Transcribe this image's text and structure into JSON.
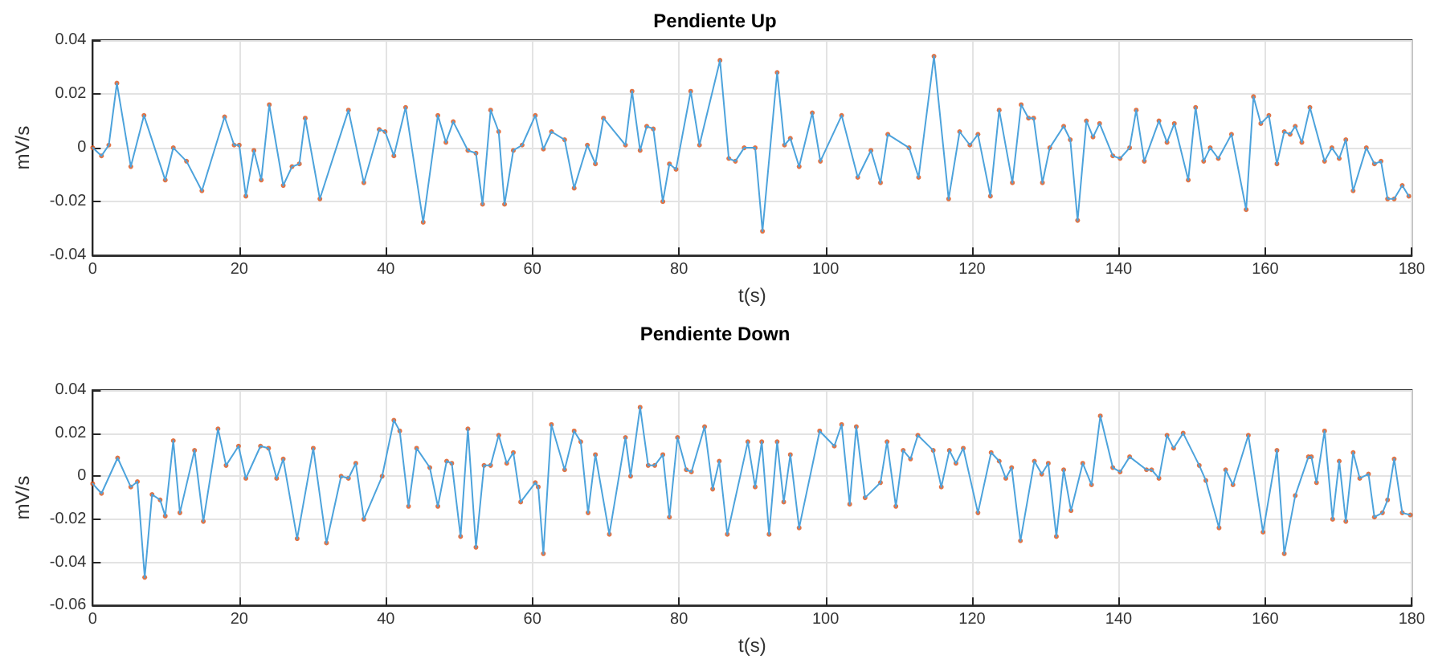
{
  "chart_data": [
    {
      "type": "line",
      "title": "Pendiente Up",
      "xlabel": "t(s)",
      "ylabel": "mV/s",
      "xlim": [
        0,
        180
      ],
      "xticks": [
        0,
        20,
        40,
        60,
        80,
        100,
        120,
        140,
        160,
        180
      ],
      "ylim": [
        -0.04,
        0.04
      ],
      "yticks": [
        -0.04,
        -0.02,
        0,
        0.02,
        0.04
      ],
      "grid": true,
      "x": [
        0,
        1.2,
        2.2,
        3.3,
        5.2,
        7.0,
        9.9,
        11.0,
        12.8,
        14.9,
        18.0,
        19.3,
        20.0,
        20.9,
        22.0,
        23.0,
        24.1,
        26.0,
        27.2,
        28.2,
        29.0,
        31.0,
        34.9,
        37.0,
        39.1,
        39.9,
        41.1,
        42.7,
        45.1,
        47.1,
        48.2,
        49.2,
        51.2,
        52.3,
        53.2,
        54.3,
        55.4,
        56.2,
        57.4,
        58.6,
        60.4,
        61.5,
        62.6,
        64.4,
        65.7,
        67.5,
        68.6,
        69.7,
        72.7,
        73.6,
        74.7,
        75.6,
        76.5,
        77.8,
        78.7,
        79.6,
        81.6,
        82.8,
        85.6,
        86.8,
        87.7,
        88.9,
        90.4,
        91.4,
        93.4,
        94.4,
        95.2,
        96.4,
        98.2,
        99.3,
        102.2,
        104.4,
        106.2,
        107.5,
        108.5,
        111.4,
        112.7,
        114.8,
        116.8,
        118.3,
        119.7,
        120.8,
        122.5,
        123.7,
        125.5,
        126.7,
        127.7,
        128.4,
        129.6,
        130.6,
        132.5,
        133.4,
        134.4,
        135.6,
        136.5,
        137.4,
        139.2,
        140.2,
        141.5,
        142.4,
        143.5,
        145.5,
        146.6,
        147.6,
        149.5,
        150.5,
        151.6,
        152.5,
        153.6,
        155.4,
        157.4,
        158.4,
        159.4,
        160.5,
        161.6,
        162.6,
        163.4,
        164.1,
        165.0,
        166.1,
        168.1,
        169.1,
        170.1,
        171.0,
        172.0,
        173.8,
        174.9,
        175.8,
        176.7,
        177.6,
        178.7,
        179.6
      ],
      "series": [
        {
          "type": "line",
          "color": "#4da3dc",
          "marker": "none",
          "values": [
            0,
            -0.003,
            0.001,
            0.024,
            -0.007,
            0.012,
            -0.012,
            0,
            -0.005,
            -0.016,
            0.0115,
            0.001,
            0.001,
            -0.018,
            -0.001,
            -0.012,
            0.016,
            -0.014,
            -0.007,
            -0.006,
            0.011,
            -0.019,
            0.014,
            -0.013,
            0.0068,
            0.006,
            -0.003,
            0.015,
            -0.0277,
            0.012,
            0.002,
            0.0097,
            -0.001,
            -0.002,
            -0.021,
            0.014,
            0.006,
            -0.021,
            -0.001,
            0.001,
            0.012,
            -0.0005,
            0.006,
            0.003,
            -0.015,
            0.001,
            -0.006,
            0.011,
            0.001,
            0.021,
            -0.001,
            0.008,
            0.007,
            -0.02,
            -0.006,
            -0.008,
            0.021,
            0.001,
            0.0325,
            -0.004,
            -0.005,
            0,
            0,
            -0.031,
            0.028,
            0.001,
            0.0035,
            -0.007,
            0.013,
            -0.005,
            0.012,
            -0.011,
            -0.001,
            -0.013,
            0.005,
            0,
            -0.011,
            0.034,
            -0.019,
            0.006,
            0.001,
            0.005,
            -0.018,
            0.014,
            -0.013,
            0.016,
            0.011,
            0.011,
            -0.013,
            0,
            0.008,
            0.003,
            -0.027,
            0.01,
            0.004,
            0.009,
            -0.003,
            -0.004,
            0,
            0.014,
            -0.005,
            0.01,
            0.002,
            0.009,
            -0.012,
            0.015,
            -0.005,
            0,
            -0.004,
            0.005,
            -0.023,
            0.019,
            0.009,
            0.012,
            -0.006,
            0.006,
            0.005,
            0.008,
            0.002,
            0.015,
            -0.005,
            0,
            -0.004,
            0.003,
            -0.016,
            0,
            -0.006,
            -0.005,
            -0.019,
            -0.019,
            -0.014,
            -0.018
          ]
        },
        {
          "type": "scatter",
          "color": "#d95319",
          "marker": "circle",
          "values": [
            0,
            -0.003,
            0.001,
            0.024,
            -0.007,
            0.012,
            -0.012,
            0,
            -0.005,
            -0.016,
            0.0115,
            0.001,
            0.001,
            -0.018,
            -0.001,
            -0.012,
            0.016,
            -0.014,
            -0.007,
            -0.006,
            0.011,
            -0.019,
            0.014,
            -0.013,
            0.0068,
            0.006,
            -0.003,
            0.015,
            -0.0277,
            0.012,
            0.002,
            0.0097,
            -0.001,
            -0.002,
            -0.021,
            0.014,
            0.006,
            -0.021,
            -0.001,
            0.001,
            0.012,
            -0.0005,
            0.006,
            0.003,
            -0.015,
            0.001,
            -0.006,
            0.011,
            0.001,
            0.021,
            -0.001,
            0.008,
            0.007,
            -0.02,
            -0.006,
            -0.008,
            0.021,
            0.001,
            0.0325,
            -0.004,
            -0.005,
            0,
            0,
            -0.031,
            0.028,
            0.001,
            0.0035,
            -0.007,
            0.013,
            -0.005,
            0.012,
            -0.011,
            -0.001,
            -0.013,
            0.005,
            0,
            -0.011,
            0.034,
            -0.019,
            0.006,
            0.001,
            0.005,
            -0.018,
            0.014,
            -0.013,
            0.016,
            0.011,
            0.011,
            -0.013,
            0,
            0.008,
            0.003,
            -0.027,
            0.01,
            0.004,
            0.009,
            -0.003,
            -0.004,
            0,
            0.014,
            -0.005,
            0.01,
            0.002,
            0.009,
            -0.012,
            0.015,
            -0.005,
            0,
            -0.004,
            0.005,
            -0.023,
            0.019,
            0.009,
            0.012,
            -0.006,
            0.006,
            0.005,
            0.008,
            0.002,
            0.015,
            -0.005,
            0,
            -0.004,
            0.003,
            -0.016,
            0,
            -0.006,
            -0.005,
            -0.019,
            -0.019,
            -0.014,
            -0.018
          ]
        }
      ]
    },
    {
      "type": "line",
      "title": "Pendiente Down",
      "xlabel": "t(s)",
      "ylabel": "mV/s",
      "xlim": [
        0,
        180
      ],
      "xticks": [
        0,
        20,
        40,
        60,
        80,
        100,
        120,
        140,
        160,
        180
      ],
      "ylim": [
        -0.06,
        0.04
      ],
      "yticks": [
        -0.06,
        -0.04,
        -0.02,
        0,
        0.02,
        0.04
      ],
      "grid": true,
      "x": [
        0,
        1.2,
        3.4,
        5.2,
        6.1,
        7.1,
        8.1,
        9.2,
        9.9,
        11.0,
        11.9,
        13.9,
        15.1,
        17.1,
        18.2,
        19.9,
        20.9,
        22.9,
        24.0,
        25.1,
        26.0,
        27.9,
        30.1,
        31.9,
        33.9,
        34.9,
        35.9,
        37.0,
        39.5,
        41.1,
        41.9,
        43.1,
        44.2,
        46.0,
        47.1,
        48.3,
        49.0,
        50.2,
        51.2,
        52.3,
        53.4,
        54.3,
        55.4,
        56.5,
        57.4,
        58.4,
        60.4,
        60.8,
        61.5,
        62.6,
        64.4,
        65.7,
        66.6,
        67.6,
        68.6,
        70.5,
        72.7,
        73.4,
        74.7,
        75.8,
        76.7,
        77.8,
        78.7,
        79.8,
        81.0,
        81.7,
        83.5,
        84.6,
        85.5,
        86.6,
        89.4,
        90.4,
        91.3,
        92.3,
        93.4,
        94.3,
        95.2,
        96.4,
        99.2,
        101.2,
        102.2,
        103.3,
        104.2,
        105.4,
        107.5,
        108.4,
        109.6,
        110.6,
        111.6,
        112.6,
        114.7,
        115.8,
        116.9,
        117.8,
        118.8,
        120.8,
        122.6,
        123.7,
        124.6,
        125.4,
        126.6,
        128.5,
        129.5,
        130.4,
        131.5,
        132.5,
        133.5,
        135.1,
        136.3,
        137.5,
        139.2,
        140.2,
        141.5,
        143.8,
        144.5,
        145.5,
        146.6,
        147.5,
        148.8,
        151.0,
        151.9,
        153.7,
        154.6,
        155.6,
        157.7,
        159.7,
        161.6,
        162.6,
        164.1,
        165.9,
        166.3,
        167.0,
        168.1,
        169.2,
        170.1,
        171.0,
        172.0,
        172.9,
        174.1,
        174.9,
        176.0,
        176.7,
        177.6,
        178.7,
        179.8
      ],
      "series": [
        {
          "type": "line",
          "color": "#4da3dc",
          "marker": "none",
          "values": [
            -0.0035,
            -0.008,
            0.0085,
            -0.005,
            -0.0025,
            -0.047,
            -0.0085,
            -0.011,
            -0.0185,
            0.0165,
            -0.017,
            0.012,
            -0.021,
            0.022,
            0.005,
            0.014,
            -0.001,
            0.014,
            0.013,
            -0.001,
            0.008,
            -0.029,
            0.013,
            -0.031,
            0,
            -0.001,
            0.006,
            -0.02,
            0,
            0.026,
            0.021,
            -0.014,
            0.013,
            0.004,
            -0.014,
            0.007,
            0.006,
            -0.028,
            0.022,
            -0.033,
            0.005,
            0.005,
            0.019,
            0.006,
            0.011,
            -0.012,
            -0.003,
            -0.005,
            -0.036,
            0.024,
            0.003,
            0.021,
            0.016,
            -0.017,
            0.01,
            -0.027,
            0.018,
            0,
            0.032,
            0.005,
            0.005,
            0.01,
            -0.019,
            0.018,
            0.003,
            0.002,
            0.023,
            -0.006,
            0.007,
            -0.027,
            0.016,
            -0.005,
            0.016,
            -0.027,
            0.016,
            -0.012,
            0.01,
            -0.024,
            0.021,
            0.014,
            0.024,
            -0.013,
            0.023,
            -0.01,
            -0.003,
            0.016,
            -0.014,
            0.012,
            0.008,
            0.019,
            0.012,
            -0.005,
            0.012,
            0.006,
            0.013,
            -0.017,
            0.011,
            0.007,
            -0.001,
            0.004,
            -0.03,
            0.007,
            0.001,
            0.006,
            -0.028,
            0.003,
            -0.016,
            0.006,
            -0.004,
            0.028,
            0.004,
            0.002,
            0.009,
            0.003,
            0.003,
            -0.001,
            0.019,
            0.013,
            0.02,
            0.005,
            -0.002,
            -0.024,
            0.003,
            -0.004,
            0.019,
            -0.026,
            0.012,
            -0.036,
            -0.009,
            0.009,
            0.009,
            -0.003,
            0.021,
            -0.02,
            0.007,
            -0.021,
            0.011,
            -0.001,
            0.001,
            -0.019,
            -0.017,
            -0.011,
            0.008,
            -0.017,
            -0.018
          ]
        },
        {
          "type": "scatter",
          "color": "#d95319",
          "marker": "circle",
          "values": [
            -0.0035,
            -0.008,
            0.0085,
            -0.005,
            -0.0025,
            -0.047,
            -0.0085,
            -0.011,
            -0.0185,
            0.0165,
            -0.017,
            0.012,
            -0.021,
            0.022,
            0.005,
            0.014,
            -0.001,
            0.014,
            0.013,
            -0.001,
            0.008,
            -0.029,
            0.013,
            -0.031,
            0,
            -0.001,
            0.006,
            -0.02,
            0,
            0.026,
            0.021,
            -0.014,
            0.013,
            0.004,
            -0.014,
            0.007,
            0.006,
            -0.028,
            0.022,
            -0.033,
            0.005,
            0.005,
            0.019,
            0.006,
            0.011,
            -0.012,
            -0.003,
            -0.005,
            -0.036,
            0.024,
            0.003,
            0.021,
            0.016,
            -0.017,
            0.01,
            -0.027,
            0.018,
            0,
            0.032,
            0.005,
            0.005,
            0.01,
            -0.019,
            0.018,
            0.003,
            0.002,
            0.023,
            -0.006,
            0.007,
            -0.027,
            0.016,
            -0.005,
            0.016,
            -0.027,
            0.016,
            -0.012,
            0.01,
            -0.024,
            0.021,
            0.014,
            0.024,
            -0.013,
            0.023,
            -0.01,
            -0.003,
            0.016,
            -0.014,
            0.012,
            0.008,
            0.019,
            0.012,
            -0.005,
            0.012,
            0.006,
            0.013,
            -0.017,
            0.011,
            0.007,
            -0.001,
            0.004,
            -0.03,
            0.007,
            0.001,
            0.006,
            -0.028,
            0.003,
            -0.016,
            0.006,
            -0.004,
            0.028,
            0.004,
            0.002,
            0.009,
            0.003,
            0.003,
            -0.001,
            0.019,
            0.013,
            0.02,
            0.005,
            -0.002,
            -0.024,
            0.003,
            -0.004,
            0.019,
            -0.026,
            0.012,
            -0.036,
            -0.009,
            0.009,
            0.009,
            -0.003,
            0.021,
            -0.02,
            0.007,
            -0.021,
            0.011,
            -0.001,
            0.001,
            -0.019,
            -0.017,
            -0.011,
            0.008,
            -0.017,
            -0.018
          ]
        }
      ]
    }
  ]
}
